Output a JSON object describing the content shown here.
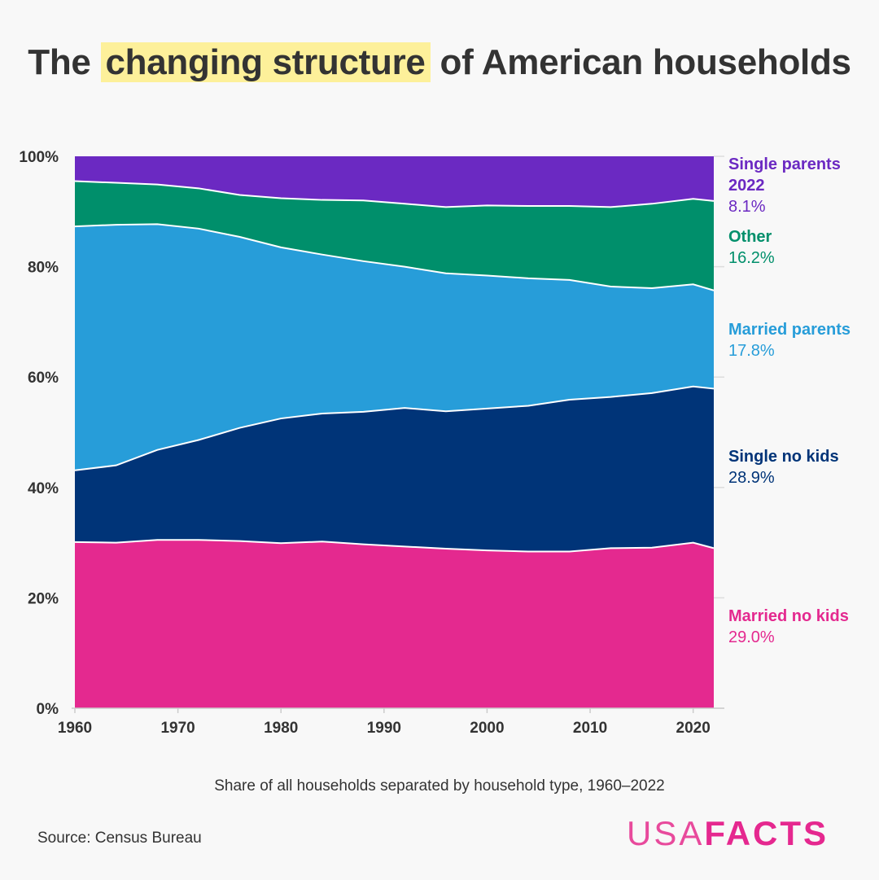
{
  "title": {
    "before": "The",
    "highlight": "changing structure",
    "after": "of American households"
  },
  "subtitle": "Share of all households separated by household type, 1960–2022",
  "source": "Source: Census Bureau",
  "logo": {
    "part1": "USA",
    "part2": "FACTS"
  },
  "chart_data": {
    "type": "area",
    "stacked": true,
    "x": [
      1960,
      1964,
      1968,
      1972,
      1976,
      1980,
      1984,
      1988,
      1992,
      1996,
      2000,
      2004,
      2008,
      2012,
      2016,
      2020,
      2022
    ],
    "series": [
      {
        "name": "Married no kids",
        "color": "#e4298f",
        "values": [
          30.1,
          30.0,
          30.5,
          30.5,
          30.3,
          29.9,
          30.2,
          29.7,
          29.3,
          28.9,
          28.6,
          28.4,
          28.4,
          29.0,
          29.1,
          30.0,
          29.0
        ]
      },
      {
        "name": "Single no kids",
        "color": "#003478",
        "values": [
          13.0,
          14.0,
          16.3,
          18.1,
          20.5,
          22.6,
          23.2,
          24.0,
          25.1,
          24.9,
          25.7,
          26.4,
          27.5,
          27.4,
          28.0,
          28.3,
          28.9
        ]
      },
      {
        "name": "Married parents",
        "color": "#279dd9",
        "values": [
          44.2,
          43.6,
          40.9,
          38.3,
          34.6,
          31.0,
          28.8,
          27.3,
          25.6,
          25.0,
          24.1,
          23.1,
          21.7,
          20.0,
          19.0,
          18.5,
          17.8
        ]
      },
      {
        "name": "Other",
        "color": "#008f6b",
        "values": [
          8.2,
          7.6,
          7.2,
          7.3,
          7.6,
          8.9,
          9.9,
          11.0,
          11.4,
          12.0,
          12.7,
          13.1,
          13.4,
          14.4,
          15.3,
          15.5,
          16.2
        ]
      },
      {
        "name": "Single parents",
        "color": "#6b29c2",
        "values": [
          4.5,
          4.8,
          5.1,
          5.8,
          7.0,
          7.6,
          7.9,
          8.0,
          8.6,
          9.2,
          8.9,
          9.0,
          9.0,
          9.2,
          8.6,
          7.7,
          8.1
        ]
      }
    ],
    "end_labels": [
      {
        "name": "Single parents",
        "extra": "2022",
        "value": "8.1%",
        "color": "#6b29c2"
      },
      {
        "name": "Other",
        "value": "16.2%",
        "color": "#008f6b"
      },
      {
        "name": "Married parents",
        "value": "17.8%",
        "color": "#279dd9"
      },
      {
        "name": "Single no kids",
        "value": "28.9%",
        "color": "#003478"
      },
      {
        "name": "Married no kids",
        "value": "29.0%",
        "color": "#e4298f"
      }
    ],
    "xlim": [
      1960,
      2022
    ],
    "ylim": [
      0,
      100
    ],
    "x_ticks": [
      "1960",
      "1970",
      "1980",
      "1990",
      "2000",
      "2010",
      "2020"
    ],
    "y_ticks": [
      "0%",
      "20%",
      "40%",
      "60%",
      "80%",
      "100%"
    ],
    "grid": false
  }
}
